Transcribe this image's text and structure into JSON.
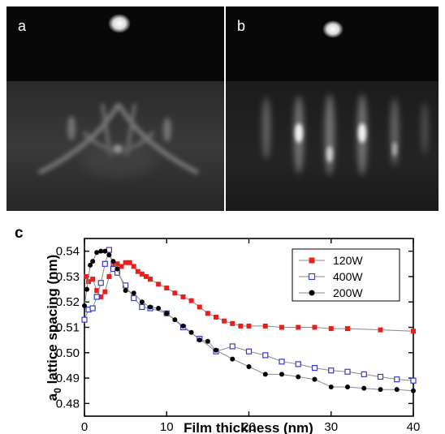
{
  "panels": {
    "a": {
      "label": "a"
    },
    "b": {
      "label": "b"
    }
  },
  "chart_data": {
    "type": "line",
    "panel_label": "c",
    "xlabel": "Film thickness (nm)",
    "ylabel_main": "a",
    "ylabel_sub": "0",
    "ylabel_rest": " lattice spacing (nm)",
    "xlim": [
      0,
      40
    ],
    "ylim": [
      0.475,
      0.545
    ],
    "xticks": [
      0,
      10,
      20,
      30,
      40
    ],
    "yticks": [
      0.48,
      0.49,
      0.5,
      0.51,
      0.52,
      0.53,
      0.54
    ],
    "ytick_labels": [
      "0.48",
      "0.49",
      "0.50",
      "0.51",
      "0.52",
      "0.53",
      "0.54"
    ],
    "grid": false,
    "legend_position": "top-right",
    "series": [
      {
        "name": "120W",
        "marker": "square-filled",
        "color": "#e8201c",
        "x": [
          0.2,
          0.5,
          1,
          1.5,
          2,
          2.5,
          3,
          3.5,
          4,
          4.5,
          5,
          5.5,
          6,
          6.5,
          7,
          7.5,
          8,
          9,
          10,
          11,
          12,
          13,
          14,
          15,
          16,
          17,
          18,
          19,
          20,
          22,
          24,
          26,
          28,
          30,
          32,
          36,
          40
        ],
        "y": [
          0.53,
          0.528,
          0.529,
          0.5245,
          0.522,
          0.524,
          0.53,
          0.535,
          0.535,
          0.534,
          0.5355,
          0.5355,
          0.534,
          0.532,
          0.531,
          0.53,
          0.529,
          0.527,
          0.5255,
          0.5235,
          0.522,
          0.5205,
          0.518,
          0.5155,
          0.514,
          0.5125,
          0.5115,
          0.5105,
          0.5105,
          0.5105,
          0.51,
          0.51,
          0.51,
          0.5095,
          0.5095,
          0.509,
          0.5085
        ]
      },
      {
        "name": "400W",
        "marker": "square-open",
        "color": "#3a3ac8",
        "x": [
          0,
          0.5,
          1,
          1.5,
          2,
          2.5,
          3,
          3.5,
          4,
          5,
          6,
          7,
          8,
          10,
          12,
          14,
          16,
          18,
          20,
          22,
          24,
          26,
          28,
          30,
          32,
          34,
          36,
          38,
          40
        ],
        "y": [
          0.513,
          0.517,
          0.5175,
          0.522,
          0.5275,
          0.535,
          0.5405,
          0.533,
          0.5315,
          0.5265,
          0.5215,
          0.518,
          0.5175,
          0.5155,
          0.51,
          0.5055,
          0.5005,
          0.5025,
          0.5005,
          0.499,
          0.4965,
          0.4955,
          0.494,
          0.493,
          0.4925,
          0.4915,
          0.4905,
          0.4895,
          0.489
        ]
      },
      {
        "name": "200W",
        "marker": "circle-filled",
        "color": "#000000",
        "x": [
          0,
          0.3,
          0.7,
          1,
          1.5,
          2,
          2.5,
          3,
          3.5,
          4,
          5,
          6,
          7,
          8,
          9,
          10,
          11,
          12,
          13,
          14,
          15,
          16,
          18,
          20,
          22,
          24,
          26,
          28,
          30,
          32,
          34,
          36,
          38,
          40
        ],
        "y": [
          0.5185,
          0.525,
          0.5345,
          0.536,
          0.5395,
          0.54,
          0.54,
          0.5385,
          0.536,
          0.533,
          0.5245,
          0.5235,
          0.52,
          0.518,
          0.5175,
          0.5155,
          0.513,
          0.5105,
          0.508,
          0.505,
          0.5045,
          0.501,
          0.4975,
          0.4945,
          0.4915,
          0.4915,
          0.4905,
          0.4895,
          0.4865,
          0.4865,
          0.486,
          0.4855,
          0.4855,
          0.485
        ]
      }
    ]
  }
}
